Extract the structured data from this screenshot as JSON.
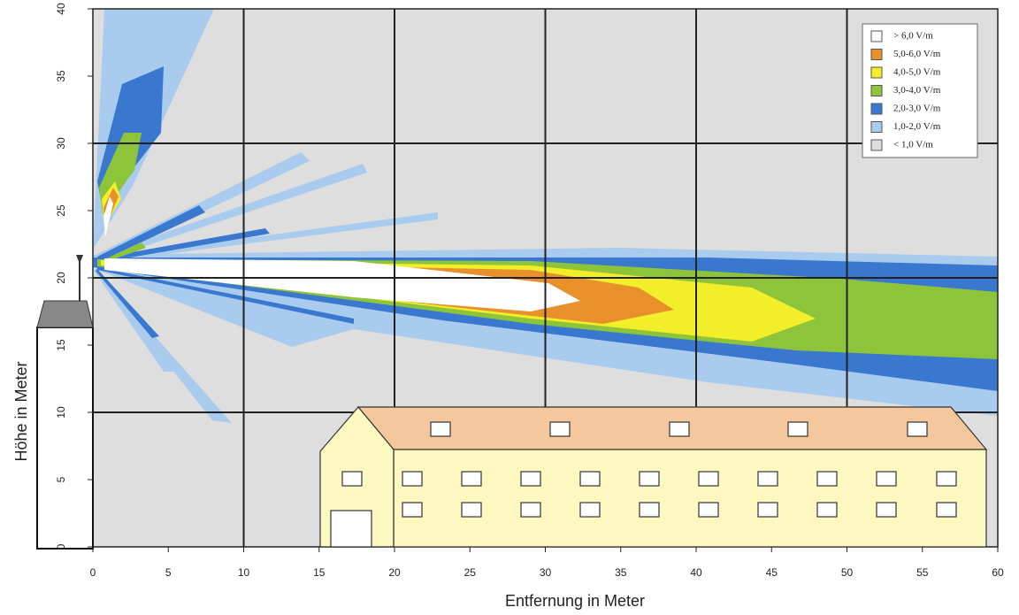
{
  "chart_data": {
    "type": "field-map",
    "xlabel": "Entfernung in Meter",
    "ylabel": "Höhe in Meter",
    "xlim": [
      0,
      60
    ],
    "ylim": [
      0,
      40
    ],
    "xticks": [
      0,
      5,
      10,
      15,
      20,
      25,
      30,
      35,
      40,
      45,
      50,
      55,
      60
    ],
    "yticks": [
      0,
      5,
      10,
      15,
      20,
      25,
      30,
      35,
      40
    ],
    "grid": true,
    "legend": "upper right",
    "series": [
      {
        "name": "> 6,0 V/m",
        "color": "#ffffff"
      },
      {
        "name": "5,0-6,0 V/m",
        "color": "#e8902a"
      },
      {
        "name": "4,0-5,0 V/m",
        "color": "#f2ee2a"
      },
      {
        "name": "3,0-4,0 V/m",
        "color": "#8dc43a"
      },
      {
        "name": "2,0-3,0 V/m",
        "color": "#3a78d0"
      },
      {
        "name": "1,0-2,0 V/m",
        "color": "#a9cbee"
      },
      {
        "name": "< 1,0 V/m",
        "color": "#dedede"
      }
    ]
  }
}
